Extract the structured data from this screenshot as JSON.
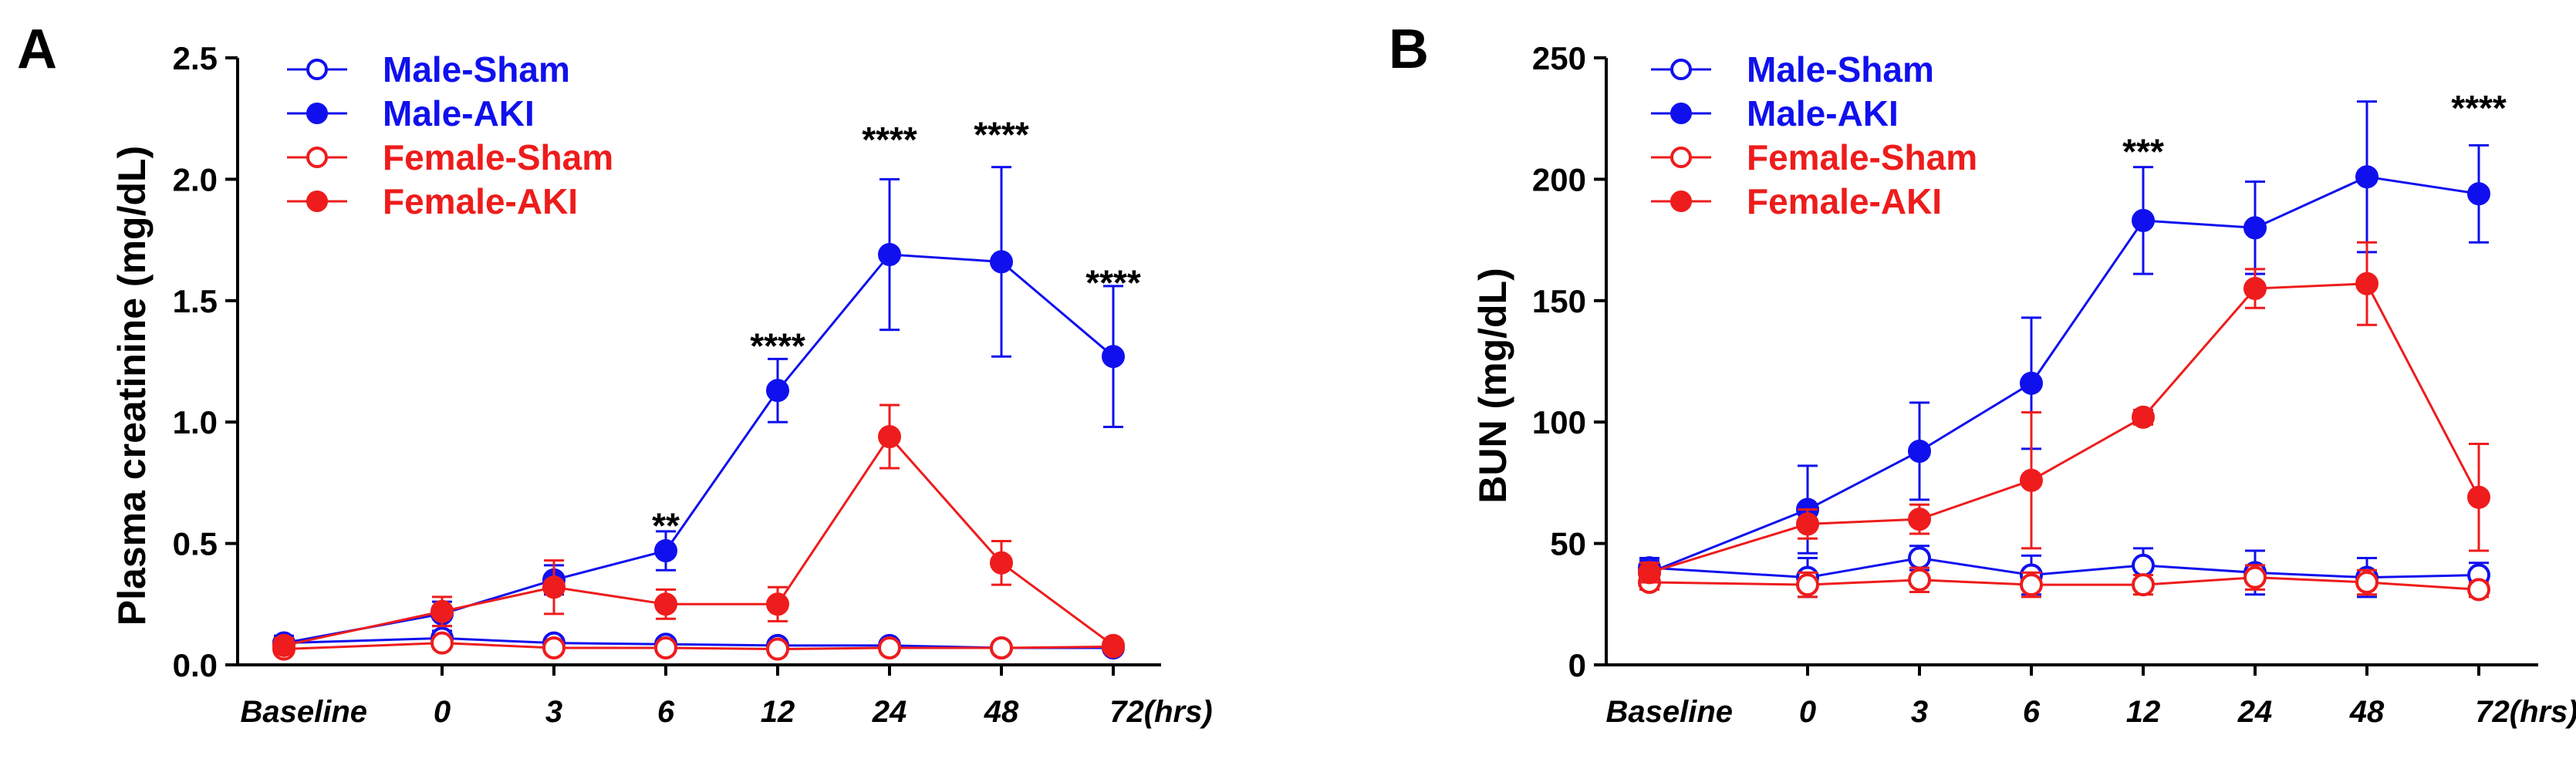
{
  "colors": {
    "male": "#1010ee",
    "female": "#ee1c1c",
    "axis": "#000000"
  },
  "chart_data": [
    {
      "panel": "A",
      "type": "line",
      "title": "",
      "xlabel": "",
      "ylabel": "Plasma creatinine (mg/dL)",
      "categories": [
        "Baseline",
        "0",
        "3",
        "6",
        "12",
        "24",
        "48",
        "72(hrs)"
      ],
      "ylim": [
        0,
        2.5
      ],
      "yticks": [
        "0.0",
        "0.5",
        "1.0",
        "1.5",
        "2.0",
        "2.5"
      ],
      "ytick_values": [
        0,
        0.5,
        1.0,
        1.5,
        2.0,
        2.5
      ],
      "legend": [
        "Male-Sham",
        "Male-AKI",
        "Female-Sham",
        "Female-AKI"
      ],
      "series": [
        {
          "name": "Male-Sham",
          "color_key": "male",
          "filled": false,
          "values": [
            0.09,
            0.11,
            0.09,
            0.085,
            0.08,
            0.08,
            0.07,
            0.07
          ],
          "errors": [
            0.02,
            0.03,
            0.02,
            0.02,
            0.02,
            0.02,
            0.02,
            0.02
          ]
        },
        {
          "name": "Male-AKI",
          "color_key": "male",
          "filled": true,
          "values": [
            0.09,
            0.21,
            0.35,
            0.47,
            1.13,
            1.69,
            1.66,
            1.27
          ],
          "errors": [
            0.03,
            0.05,
            0.06,
            0.08,
            0.13,
            0.31,
            0.39,
            0.29
          ]
        },
        {
          "name": "Female-Sham",
          "color_key": "female",
          "filled": false,
          "values": [
            0.065,
            0.09,
            0.07,
            0.07,
            0.065,
            0.07,
            0.07,
            0.075
          ],
          "errors": [
            0.02,
            0.02,
            0.02,
            0.02,
            0.02,
            0.02,
            0.02,
            0.02
          ]
        },
        {
          "name": "Female-AKI",
          "color_key": "female",
          "filled": true,
          "values": [
            0.08,
            0.22,
            0.32,
            0.25,
            0.25,
            0.94,
            0.42,
            0.08
          ],
          "errors": [
            0.03,
            0.06,
            0.11,
            0.06,
            0.07,
            0.13,
            0.09,
            0.02
          ]
        }
      ],
      "annotations": [
        {
          "category": "6",
          "text": "**",
          "y": 0.58
        },
        {
          "category": "12",
          "text": "****",
          "y": 1.32
        },
        {
          "category": "24",
          "text": "****",
          "y": 2.17
        },
        {
          "category": "48",
          "text": "****",
          "y": 2.19
        },
        {
          "category": "72(hrs)",
          "text": "****",
          "y": 1.58
        }
      ]
    },
    {
      "panel": "B",
      "type": "line",
      "title": "",
      "xlabel": "",
      "ylabel": "BUN (mg/dL)",
      "categories": [
        "Baseline",
        "0",
        "3",
        "6",
        "12",
        "24",
        "48",
        "72(hrs)"
      ],
      "ylim": [
        0,
        250
      ],
      "yticks": [
        "0",
        "50",
        "100",
        "150",
        "200",
        "250"
      ],
      "ytick_values": [
        0,
        50,
        100,
        150,
        200,
        250
      ],
      "legend": [
        "Male-Sham",
        "Male-AKI",
        "Female-Sham",
        "Female-AKI"
      ],
      "series": [
        {
          "name": "Male-Sham",
          "color_key": "male",
          "filled": false,
          "values": [
            40,
            36,
            44,
            37,
            41,
            38,
            36,
            37
          ],
          "errors": [
            4,
            8,
            5,
            8,
            7,
            9,
            8,
            5
          ]
        },
        {
          "name": "Male-AKI",
          "color_key": "male",
          "filled": true,
          "values": [
            38,
            64,
            88,
            116,
            183,
            180,
            201,
            194
          ],
          "errors": [
            5,
            18,
            20,
            27,
            22,
            19,
            31,
            20
          ]
        },
        {
          "name": "Female-Sham",
          "color_key": "female",
          "filled": false,
          "values": [
            34,
            33,
            35,
            33,
            33,
            36,
            34,
            31
          ],
          "errors": [
            3,
            5,
            5,
            5,
            4,
            5,
            5,
            3
          ]
        },
        {
          "name": "Female-AKI",
          "color_key": "female",
          "filled": true,
          "values": [
            38,
            58,
            60,
            76,
            102,
            155,
            157,
            69
          ],
          "errors": [
            4,
            6,
            6,
            28,
            3,
            8,
            17,
            22
          ]
        }
      ],
      "annotations": [
        {
          "category": "12",
          "text": "***",
          "y": 212
        },
        {
          "category": "72(hrs)",
          "text": "****",
          "y": 230
        }
      ]
    }
  ]
}
